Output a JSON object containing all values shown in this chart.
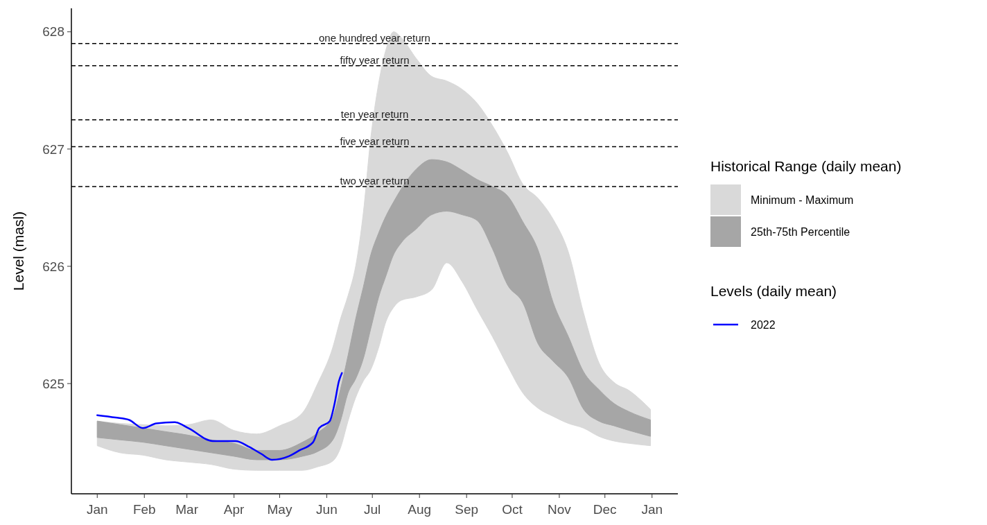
{
  "chart_data": {
    "type": "line",
    "ylabel": "Level (masl)",
    "xlim": [
      "2021-12-15",
      "2023-01-18"
    ],
    "xticks": [
      {
        "value": "2022-01-01",
        "label": "Jan"
      },
      {
        "value": "2022-02-01",
        "label": "Feb"
      },
      {
        "value": "2022-03-01",
        "label": "Mar"
      },
      {
        "value": "2022-04-01",
        "label": "Apr"
      },
      {
        "value": "2022-05-01",
        "label": "May"
      },
      {
        "value": "2022-06-01",
        "label": "Jun"
      },
      {
        "value": "2022-07-01",
        "label": "Jul"
      },
      {
        "value": "2022-08-01",
        "label": "Aug"
      },
      {
        "value": "2022-09-01",
        "label": "Sep"
      },
      {
        "value": "2022-10-01",
        "label": "Oct"
      },
      {
        "value": "2022-11-01",
        "label": "Nov"
      },
      {
        "value": "2022-12-01",
        "label": "Dec"
      },
      {
        "value": "2023-01-01",
        "label": "Jan"
      }
    ],
    "ylim": [
      624.06,
      628.2
    ],
    "yticks": [
      625,
      626,
      627,
      628
    ],
    "legend": "right",
    "legend_title": [
      "Historical Range (daily mean)",
      "Levels (daily mean)"
    ],
    "series": [
      {
        "name": "Minimum - Maximum",
        "color": "#d9d9d9",
        "x": [
          "2022-01-01",
          "2022-01-16",
          "2022-01-31",
          "2022-02-15",
          "2022-03-02",
          "2022-03-17",
          "2022-04-01",
          "2022-04-16",
          "2022-05-01",
          "2022-05-16",
          "2022-05-26",
          "2022-06-05",
          "2022-06-10",
          "2022-06-15",
          "2022-06-20",
          "2022-06-25",
          "2022-06-30",
          "2022-07-05",
          "2022-07-10",
          "2022-07-15",
          "2022-07-20",
          "2022-07-30",
          "2022-08-09",
          "2022-08-19",
          "2022-08-29",
          "2022-09-08",
          "2022-09-18",
          "2022-09-28",
          "2022-10-08",
          "2022-10-18",
          "2022-10-28",
          "2022-11-07",
          "2022-11-17",
          "2022-11-27",
          "2022-12-07",
          "2022-12-17",
          "2022-12-31"
        ],
        "values": [
          null,
          null,
          null,
          null,
          null,
          null,
          null,
          null,
          null,
          null,
          null,
          null,
          null,
          null,
          null,
          null,
          null,
          null,
          null,
          null,
          null,
          null,
          null,
          null,
          null,
          null,
          null,
          null,
          null,
          null,
          null,
          null,
          null,
          null,
          null,
          null,
          null
        ],
        "upper": [
          624.68,
          624.66,
          624.65,
          624.64,
          624.65,
          624.69,
          624.6,
          624.57,
          624.64,
          624.75,
          625.0,
          625.31,
          625.55,
          625.75,
          626.0,
          626.45,
          627.1,
          627.55,
          627.85,
          628.0,
          627.95,
          627.77,
          627.62,
          627.58,
          627.51,
          627.39,
          627.2,
          626.97,
          626.7,
          626.58,
          626.4,
          626.12,
          625.6,
          625.18,
          625.01,
          624.94,
          624.78
        ],
        "lower": [
          624.47,
          624.41,
          624.39,
          624.35,
          624.33,
          624.31,
          624.27,
          624.26,
          624.26,
          624.26,
          624.29,
          624.34,
          624.45,
          624.68,
          624.88,
          625.02,
          625.12,
          625.3,
          625.53,
          625.65,
          625.71,
          625.74,
          625.8,
          626.03,
          625.87,
          625.63,
          625.4,
          625.15,
          624.92,
          624.79,
          624.72,
          624.66,
          624.62,
          624.55,
          624.51,
          624.49,
          624.47
        ]
      },
      {
        "name": "25th-75th Percentile",
        "color": "#a6a6a6",
        "x": [
          "2022-01-01",
          "2022-01-16",
          "2022-01-31",
          "2022-02-15",
          "2022-03-02",
          "2022-03-17",
          "2022-04-01",
          "2022-04-16",
          "2022-05-01",
          "2022-05-16",
          "2022-05-26",
          "2022-06-05",
          "2022-06-10",
          "2022-06-15",
          "2022-06-20",
          "2022-06-25",
          "2022-06-30",
          "2022-07-05",
          "2022-07-10",
          "2022-07-15",
          "2022-07-20",
          "2022-07-30",
          "2022-08-09",
          "2022-08-19",
          "2022-08-29",
          "2022-09-08",
          "2022-09-18",
          "2022-09-28",
          "2022-10-08",
          "2022-10-18",
          "2022-10-28",
          "2022-11-07",
          "2022-11-17",
          "2022-11-27",
          "2022-12-07",
          "2022-12-17",
          "2022-12-31"
        ],
        "values": [
          null,
          null,
          null,
          null,
          null,
          null,
          null,
          null,
          null,
          null,
          null,
          null,
          null,
          null,
          null,
          null,
          null,
          null,
          null,
          null,
          null,
          null,
          null,
          null,
          null,
          null,
          null,
          null,
          null,
          null,
          null,
          null,
          null,
          null,
          null,
          null,
          null
        ],
        "upper": [
          624.68,
          624.65,
          624.62,
          624.59,
          624.56,
          624.52,
          624.49,
          624.43,
          624.43,
          624.5,
          624.58,
          624.72,
          624.95,
          625.24,
          625.55,
          625.82,
          626.1,
          626.28,
          626.43,
          626.55,
          626.66,
          626.83,
          626.91,
          626.89,
          626.82,
          626.74,
          626.68,
          626.6,
          626.38,
          626.14,
          625.69,
          625.4,
          625.1,
          624.95,
          624.83,
          624.76,
          624.69
        ],
        "lower": [
          624.54,
          624.52,
          624.5,
          624.47,
          624.44,
          624.41,
          624.38,
          624.35,
          624.35,
          624.38,
          624.42,
          624.52,
          624.68,
          624.92,
          625.04,
          625.21,
          625.47,
          625.73,
          625.92,
          626.1,
          626.2,
          626.32,
          626.44,
          626.47,
          626.44,
          626.39,
          626.15,
          625.84,
          625.69,
          625.34,
          625.19,
          625.05,
          624.78,
          624.68,
          624.64,
          624.6,
          624.55
        ]
      },
      {
        "name": "2022",
        "color": "#0000ff",
        "x": [
          "2022-01-01",
          "2022-01-13",
          "2022-01-22",
          "2022-01-31",
          "2022-02-09",
          "2022-02-21",
          "2022-03-02",
          "2022-03-18",
          "2022-04-02",
          "2022-04-11",
          "2022-04-19",
          "2022-04-26",
          "2022-05-07",
          "2022-05-14",
          "2022-05-23",
          "2022-05-27",
          "2022-06-03",
          "2022-06-06",
          "2022-06-09",
          "2022-06-11"
        ],
        "values": [
          624.73,
          624.71,
          624.69,
          624.62,
          624.66,
          624.67,
          624.62,
          624.51,
          624.51,
          624.46,
          624.4,
          624.35,
          624.38,
          624.43,
          624.5,
          624.62,
          624.68,
          624.82,
          625.02,
          625.09
        ]
      }
    ],
    "ref_lines": [
      {
        "axis": "y",
        "value": 627.9,
        "label": "one hundred year return",
        "color": "#000000",
        "line_style": "dashed"
      },
      {
        "axis": "y",
        "value": 627.71,
        "label": "fifty year return",
        "color": "#000000",
        "line_style": "dashed"
      },
      {
        "axis": "y",
        "value": 627.25,
        "label": "ten year return",
        "color": "#000000",
        "line_style": "dashed"
      },
      {
        "axis": "y",
        "value": 627.02,
        "label": "five year return",
        "color": "#000000",
        "line_style": "dashed"
      },
      {
        "axis": "y",
        "value": 626.68,
        "label": "two year return",
        "color": "#000000",
        "line_style": "dashed"
      }
    ]
  }
}
